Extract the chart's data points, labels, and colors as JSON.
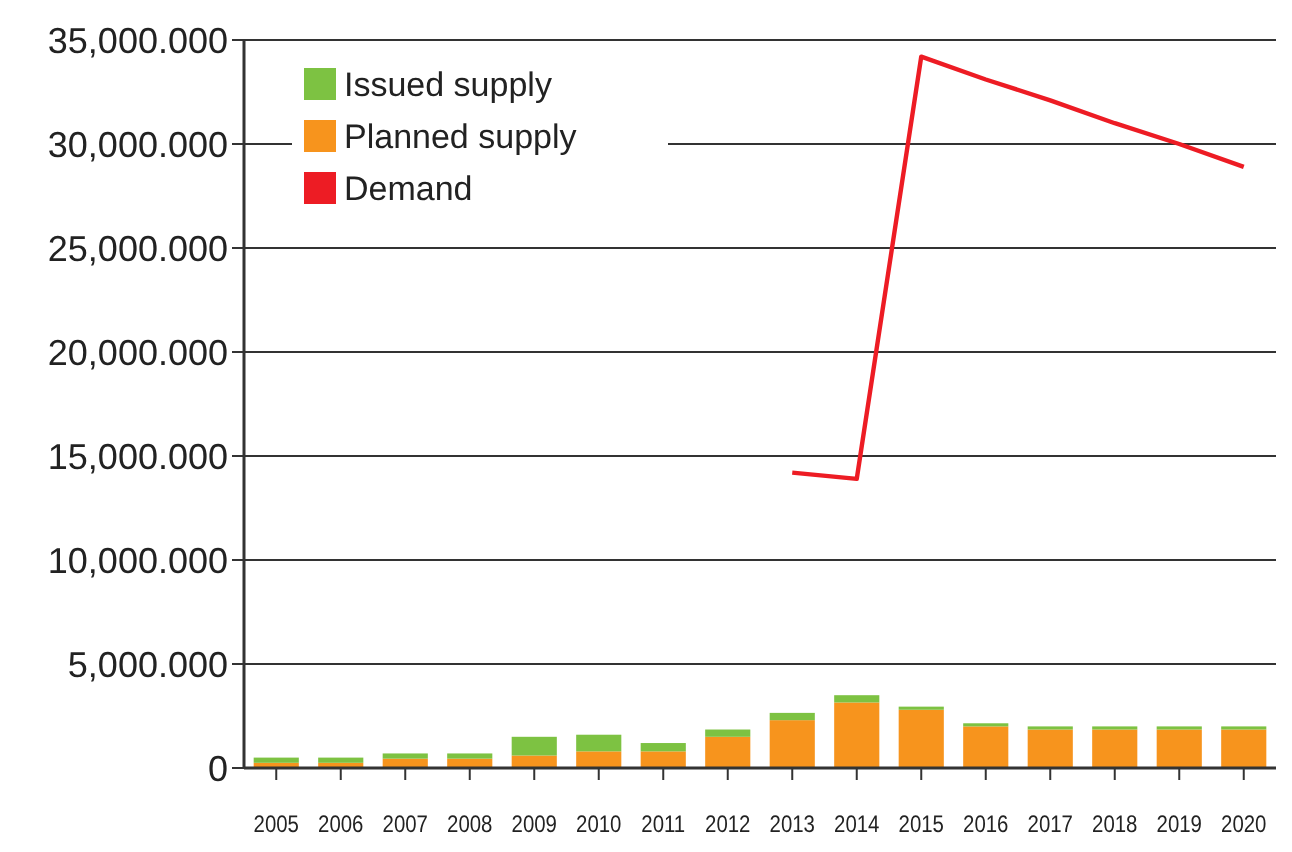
{
  "chart_data": {
    "type": "bar",
    "stacked": true,
    "categories": [
      "2005",
      "2006",
      "2007",
      "2008",
      "2009",
      "2010",
      "2011",
      "2012",
      "2013",
      "2014",
      "2015",
      "2016",
      "2017",
      "2018",
      "2019",
      "2020"
    ],
    "series": [
      {
        "name": "Planned supply",
        "color": "#f7941d",
        "values": [
          250,
          250,
          450,
          450,
          600,
          800,
          800,
          1500,
          2300,
          3150,
          2800,
          2000,
          1850,
          1850,
          1850,
          1850
        ]
      },
      {
        "name": "Issued supply",
        "color": "#7dc242",
        "values": [
          250,
          250,
          250,
          250,
          900,
          800,
          400,
          350,
          350,
          350,
          150,
          150,
          150,
          150,
          150,
          150
        ]
      },
      {
        "name": "Demand",
        "type": "line",
        "color": "#ed1c24",
        "values": [
          null,
          null,
          null,
          null,
          null,
          null,
          null,
          null,
          14200,
          13900,
          34200,
          33100,
          32100,
          31000,
          30000,
          28900
        ]
      }
    ],
    "ylim": [
      0,
      35000
    ],
    "yticks": [
      0,
      {
        "value": 5000,
        "label": "5,000.000"
      },
      {
        "value": 10000,
        "label": "10,000.000"
      },
      {
        "value": 15000,
        "label": "15,000.000"
      },
      {
        "value": 20000,
        "label": "20,000.000"
      },
      {
        "value": 25000,
        "label": "25,000.000"
      },
      {
        "value": 30000,
        "label": "30,000.000"
      },
      {
        "value": 35000,
        "label": "35,000.000"
      }
    ],
    "grid": "y",
    "legend": "top left",
    "line_style": "solid",
    "marker": "none"
  }
}
